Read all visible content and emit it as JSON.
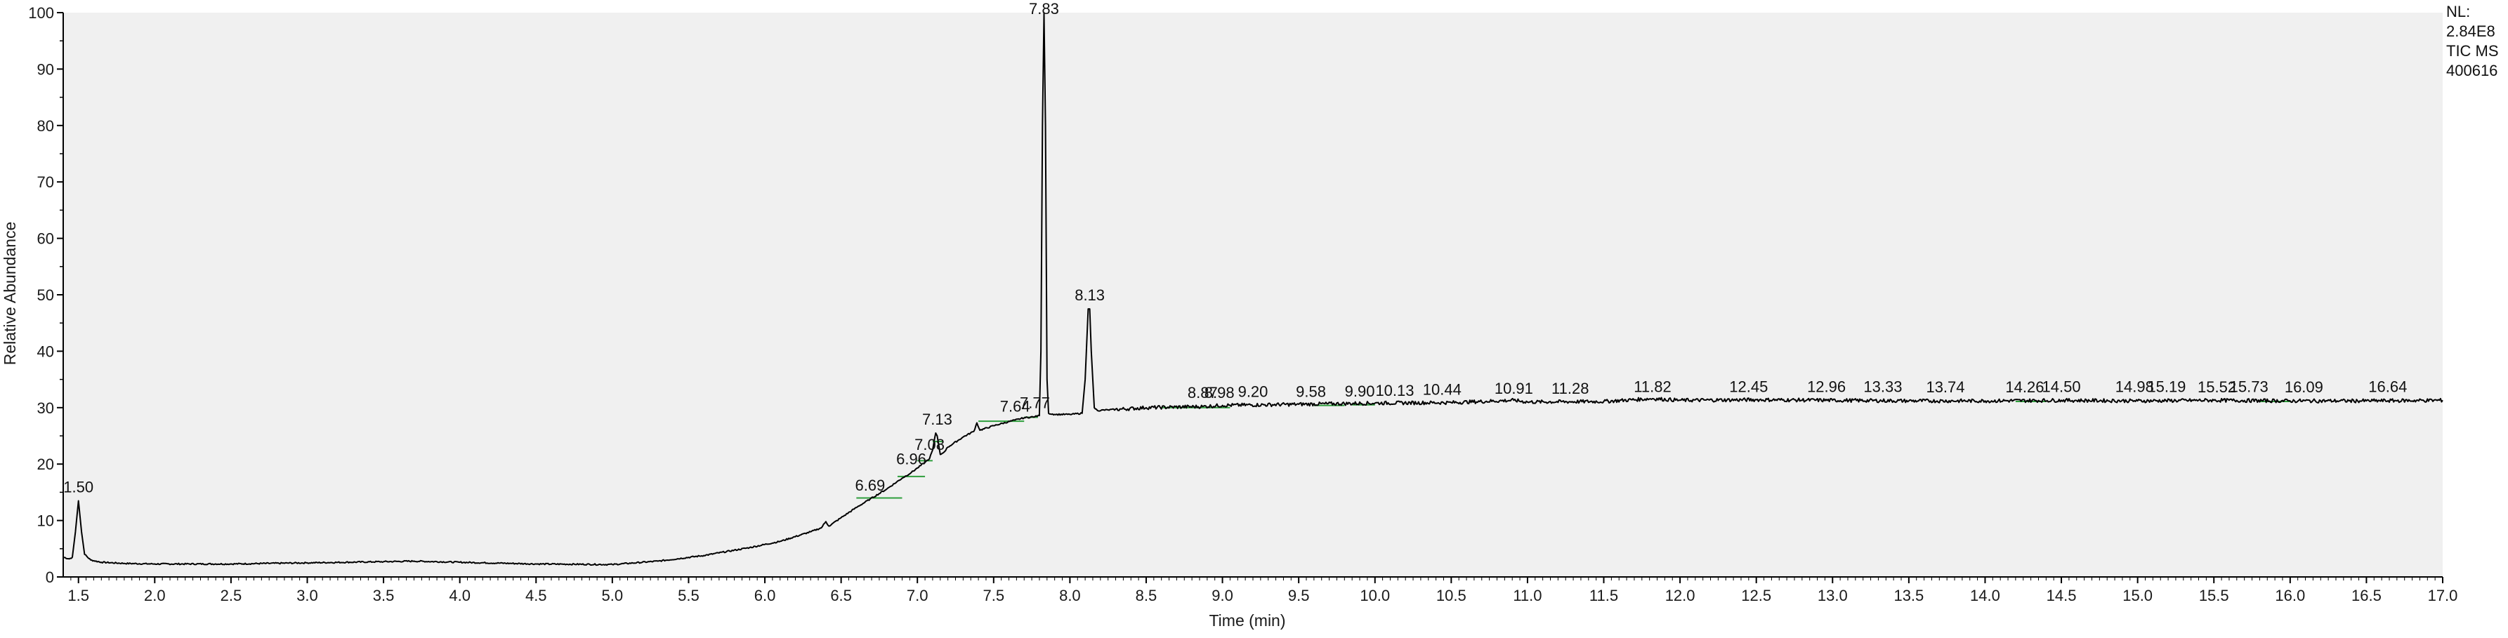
{
  "chart_data": {
    "type": "line",
    "title": "",
    "xlabel": "Time (min)",
    "ylabel": "Relative Abundance",
    "xlim": [
      1.4,
      17.0
    ],
    "ylim": [
      0,
      100
    ],
    "x_ticks": [
      1.5,
      2.0,
      2.5,
      3.0,
      3.5,
      4.0,
      4.5,
      5.0,
      5.5,
      6.0,
      6.5,
      7.0,
      7.5,
      8.0,
      8.5,
      9.0,
      9.5,
      10.0,
      10.5,
      11.0,
      11.5,
      12.0,
      12.5,
      13.0,
      13.5,
      14.0,
      14.5,
      15.0,
      15.5,
      16.0,
      16.5,
      17.0
    ],
    "x_tick_labels": [
      "1.5",
      "2.0",
      "2.5",
      "3.0",
      "3.5",
      "4.0",
      "4.5",
      "5.0",
      "5.5",
      "6.0",
      "6.5",
      "7.0",
      "7.5",
      "8.0",
      "8.5",
      "9.0",
      "9.5",
      "10.0",
      "10.5",
      "11.0",
      "11.5",
      "12.0",
      "12.5",
      "13.0",
      "13.5",
      "14.0",
      "14.5",
      "15.0",
      "15.5",
      "16.0",
      "16.5",
      "17.0"
    ],
    "y_ticks": [
      0,
      10,
      20,
      30,
      40,
      50,
      60,
      70,
      80,
      90,
      100
    ],
    "y_tick_labels": [
      "0",
      "10",
      "20",
      "30",
      "40",
      "50",
      "60",
      "70",
      "80",
      "90",
      "100"
    ],
    "grid": false,
    "info": [
      "NL:",
      "2.84E8",
      "TIC MS",
      "400616"
    ],
    "colors": {
      "trace": "#000000",
      "baseline_marks": "#2e9e3c",
      "plot_background": "#f0f0f0"
    },
    "series": [
      {
        "x": [
          1.4,
          1.44,
          1.46,
          1.48,
          1.5,
          1.52,
          1.54,
          1.58,
          1.65,
          1.8,
          2.0,
          2.5,
          3.0,
          3.5,
          3.7,
          4.0,
          4.5,
          5.0,
          5.3,
          5.6,
          5.9,
          6.1,
          6.3,
          6.37,
          6.4,
          6.42,
          6.5,
          6.6,
          6.69,
          6.8,
          6.9,
          6.96,
          7.0,
          7.05,
          7.08,
          7.1,
          7.12,
          7.13,
          7.15,
          7.17,
          7.2,
          7.3,
          7.37,
          7.39,
          7.41,
          7.5,
          7.64,
          7.7,
          7.77,
          7.8,
          7.81,
          7.82,
          7.83,
          7.84,
          7.85,
          7.86,
          7.9,
          8.0,
          8.08,
          8.1,
          8.12,
          8.13,
          8.14,
          8.16,
          8.18,
          8.25,
          8.5,
          8.87,
          9.0,
          9.5,
          10.0,
          10.5,
          10.91,
          11.0,
          11.5,
          11.82,
          12.0,
          12.5,
          13.0,
          13.5,
          14.0,
          14.5,
          15.0,
          15.5,
          16.0,
          16.5,
          17.0
        ],
        "y": [
          3.5,
          3.2,
          3.5,
          8,
          13.5,
          8,
          4,
          3,
          2.6,
          2.4,
          2.3,
          2.3,
          2.5,
          2.7,
          2.8,
          2.6,
          2.3,
          2.2,
          2.8,
          3.8,
          5.2,
          6.3,
          8.0,
          8.7,
          9.8,
          9.0,
          10.5,
          12.3,
          13.8,
          15.6,
          17.5,
          18.5,
          19.3,
          20.3,
          21.0,
          22.5,
          25.5,
          25.0,
          21.7,
          22.0,
          23.0,
          24.8,
          25.8,
          27.3,
          26.0,
          26.8,
          27.8,
          28.2,
          28.4,
          28.6,
          40,
          80,
          100,
          80,
          35,
          29.0,
          28.8,
          28.8,
          29.0,
          35,
          47.5,
          47.5,
          40,
          30,
          29.5,
          29.6,
          30.0,
          30.2,
          30.4,
          30.6,
          30.8,
          30.9,
          31.3,
          31.0,
          31.1,
          31.6,
          31.3,
          31.4,
          31.3,
          31.2,
          31.2,
          31.3,
          31.2,
          31.3,
          31.2,
          31.2,
          31.3
        ]
      }
    ],
    "peak_labels": [
      {
        "text": "1.50",
        "x": 1.5,
        "y": 13.5
      },
      {
        "text": "6.69",
        "x": 6.69,
        "y": 13.8
      },
      {
        "text": "6.96",
        "x": 6.96,
        "y": 18.5
      },
      {
        "text": "7.08",
        "x": 7.08,
        "y": 21.0
      },
      {
        "text": "7.13",
        "x": 7.13,
        "y": 25.5
      },
      {
        "text": "7.64",
        "x": 7.64,
        "y": 27.8
      },
      {
        "text": "7.77",
        "x": 7.77,
        "y": 28.4
      },
      {
        "text": "7.83",
        "x": 7.83,
        "y": 100
      },
      {
        "text": "8.13",
        "x": 8.13,
        "y": 47.5
      },
      {
        "text": "8.87",
        "x": 8.87,
        "y": 30.2
      },
      {
        "text": "8.98",
        "x": 8.98,
        "y": 30.2
      },
      {
        "text": "9.20",
        "x": 9.2,
        "y": 30.4
      },
      {
        "text": "9.58",
        "x": 9.58,
        "y": 30.4
      },
      {
        "text": "9.90",
        "x": 9.9,
        "y": 30.5
      },
      {
        "text": "10.13",
        "x": 10.13,
        "y": 30.6
      },
      {
        "text": "10.44",
        "x": 10.44,
        "y": 30.8
      },
      {
        "text": "10.91",
        "x": 10.91,
        "y": 31.0
      },
      {
        "text": "11.28",
        "x": 11.28,
        "y": 31.0
      },
      {
        "text": "11.82",
        "x": 11.82,
        "y": 31.3
      },
      {
        "text": "12.45",
        "x": 12.45,
        "y": 31.3
      },
      {
        "text": "12.96",
        "x": 12.96,
        "y": 31.3
      },
      {
        "text": "13.33",
        "x": 13.33,
        "y": 31.3
      },
      {
        "text": "13.74",
        "x": 13.74,
        "y": 31.2
      },
      {
        "text": "14.26",
        "x": 14.26,
        "y": 31.2
      },
      {
        "text": "14.50",
        "x": 14.5,
        "y": 31.3
      },
      {
        "text": "14.98",
        "x": 14.98,
        "y": 31.3
      },
      {
        "text": "15.19",
        "x": 15.19,
        "y": 31.3
      },
      {
        "text": "15.52",
        "x": 15.52,
        "y": 31.2
      },
      {
        "text": "15.73",
        "x": 15.73,
        "y": 31.3
      },
      {
        "text": "16.09",
        "x": 16.09,
        "y": 31.2
      },
      {
        "text": "16.64",
        "x": 16.64,
        "y": 31.3
      }
    ],
    "baseline_marks": [
      {
        "x0": 6.6,
        "x1": 6.9,
        "y": 14.0
      },
      {
        "x0": 6.87,
        "x1": 7.05,
        "y": 17.8
      },
      {
        "x0": 7.0,
        "x1": 7.1,
        "y": 20.6
      },
      {
        "x0": 7.1,
        "x1": 7.17,
        "y": 24.0
      },
      {
        "x0": 7.4,
        "x1": 7.7,
        "y": 27.6
      },
      {
        "x0": 7.7,
        "x1": 7.79,
        "y": 28.3
      },
      {
        "x0": 8.6,
        "x1": 9.05,
        "y": 30.0
      },
      {
        "x0": 9.6,
        "x1": 9.8,
        "y": 30.4
      },
      {
        "x0": 9.85,
        "x1": 10.0,
        "y": 30.5
      },
      {
        "x0": 14.2,
        "x1": 14.4,
        "y": 31.1
      },
      {
        "x0": 15.8,
        "x1": 16.0,
        "y": 31.1
      }
    ]
  }
}
